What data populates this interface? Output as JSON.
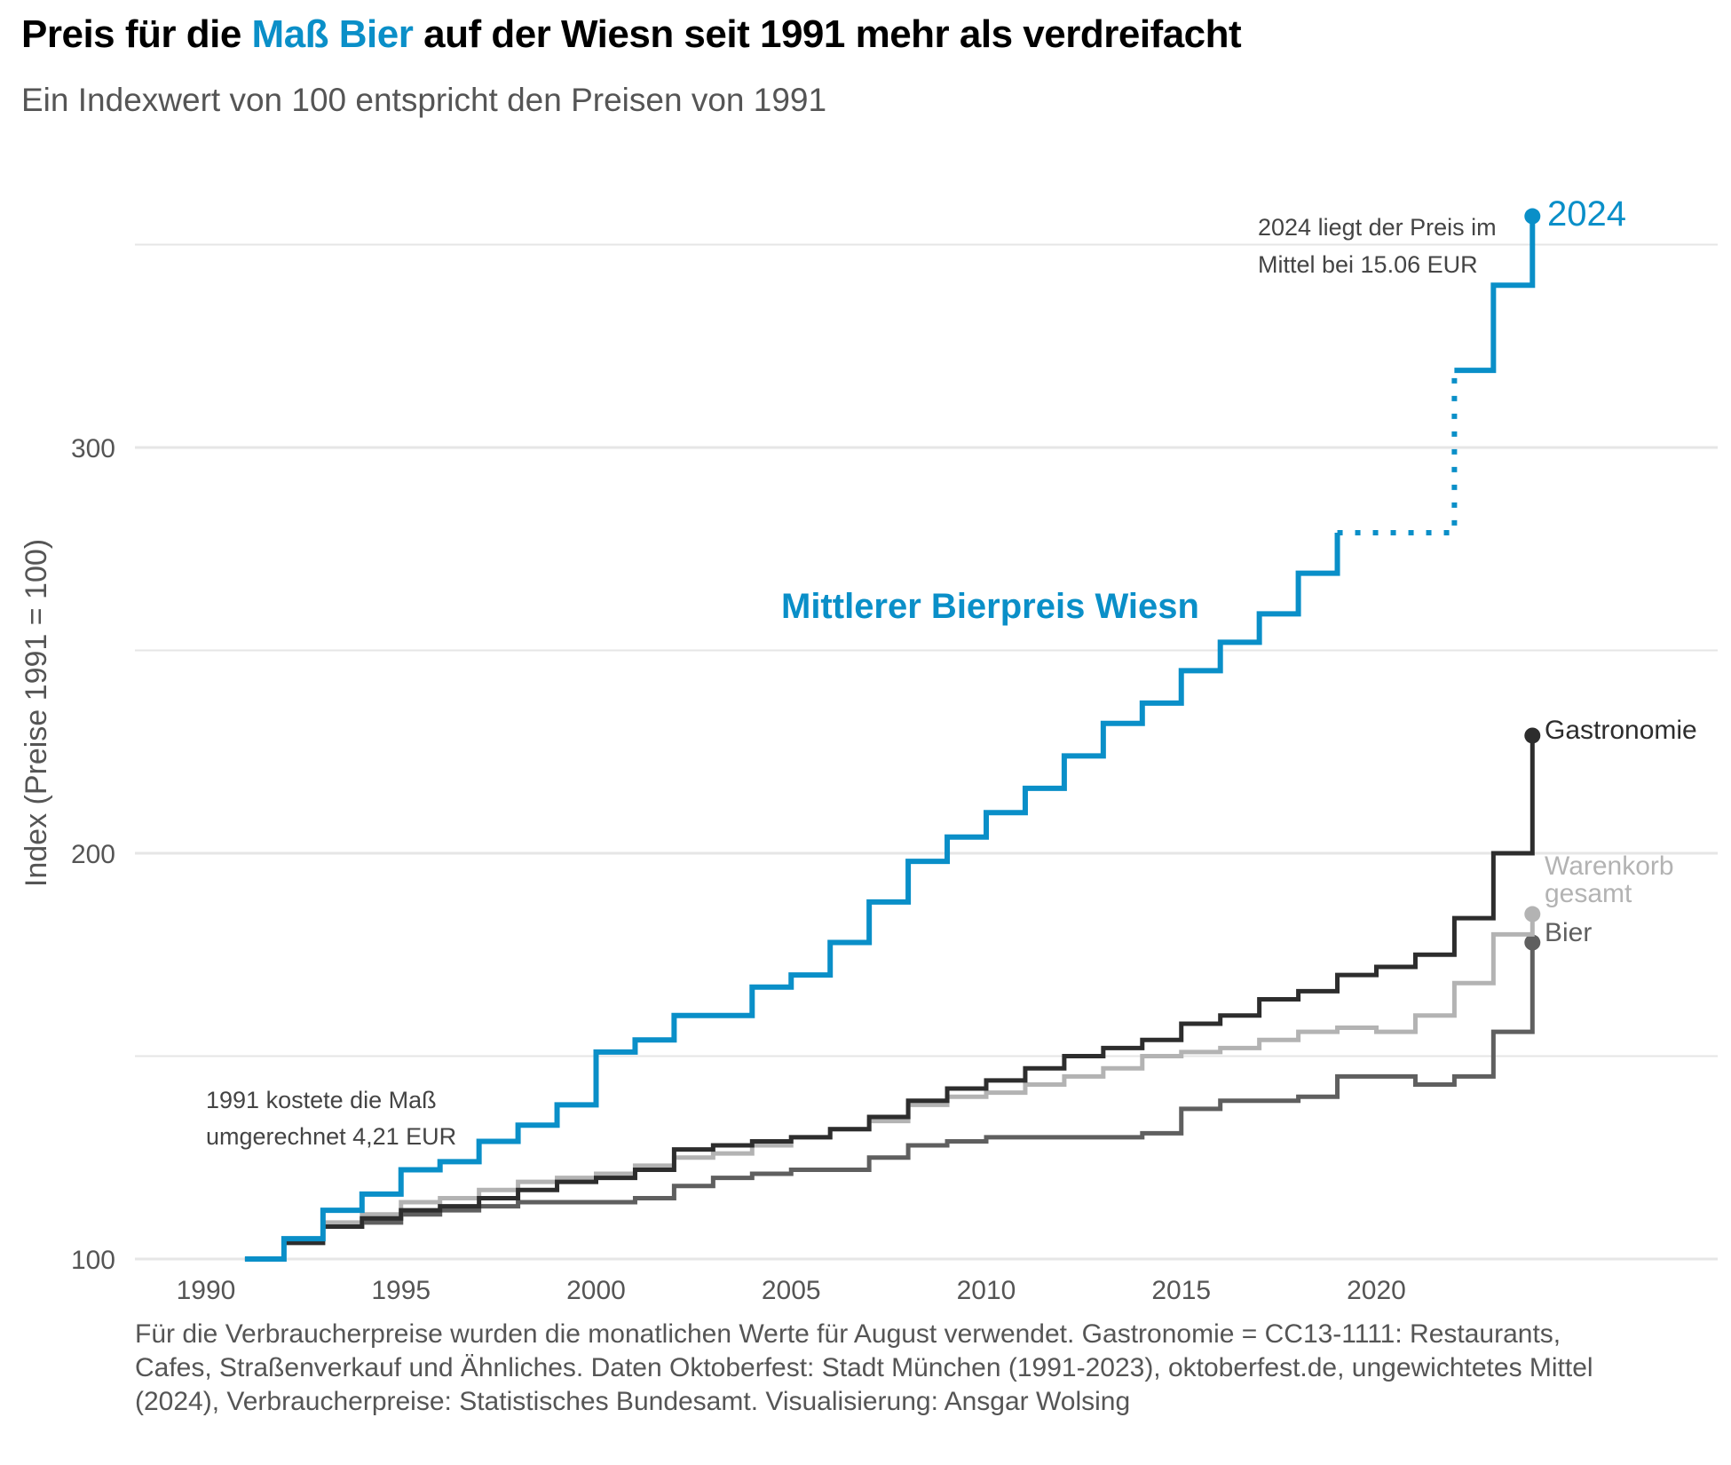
{
  "title": {
    "pre": "Preis für die ",
    "highlight": "Maß Bier",
    "post": " auf der Wiesn seit 1991 mehr als verdreifacht"
  },
  "subtitle": "Ein Indexwert von 100 entspricht den Preisen von 1991",
  "caption": {
    "line1": "Für die Verbraucherpreise wurden die monatlichen Werte für August verwendet. Gastronomie = CC13-1111: Restaurants,",
    "line2": "Cafes, Straßenverkauf und Ähnliches. Daten Oktoberfest: Stadt München (1991-2023), oktoberfest.de, ungewichtetes Mittel",
    "line3": "(2024), Verbraucherpreise: Statistisches Bundesamt. Visualisierung: Ansgar Wolsing"
  },
  "annotations": {
    "start_line1": "1991 kostete die Maß",
    "start_line2": "umgerechnet 4,21 EUR",
    "end_line1": "2024 liegt der Preis im",
    "end_line2": "Mittel bei 15.06 EUR",
    "end_year": "2024",
    "series_title": "Mittlerer Bierpreis Wiesn"
  },
  "colors": {
    "accent": "#0a8fc8",
    "gastronomie": "#2d2d2d",
    "warenkorb": "#b3b3b3",
    "bier": "#5f5f5f",
    "grid": "#e6e6e6"
  },
  "chart_data": {
    "type": "line",
    "step": "post",
    "ylabel": "Index (Preise 1991 = 100)",
    "xlim": [
      1988,
      2027
    ],
    "ylim": [
      100,
      365
    ],
    "x_ticks": [
      1990,
      1995,
      2000,
      2005,
      2010,
      2015,
      2020
    ],
    "y_ticks": [
      100,
      200,
      300
    ],
    "y_grid": [
      150,
      250,
      350
    ],
    "x": [
      1991,
      1992,
      1993,
      1994,
      1995,
      1996,
      1997,
      1998,
      1999,
      2000,
      2001,
      2002,
      2003,
      2004,
      2005,
      2006,
      2007,
      2008,
      2009,
      2010,
      2011,
      2012,
      2013,
      2014,
      2015,
      2016,
      2017,
      2018,
      2019,
      2020,
      2021,
      2022,
      2023,
      2024
    ],
    "series": [
      {
        "key": "wiesn",
        "name": "Mittlerer Bierpreis Wiesn",
        "values": [
          100,
          105,
          112,
          116,
          122,
          124,
          129,
          133,
          138,
          151,
          154,
          160,
          160,
          167,
          170,
          178,
          188,
          198,
          204,
          210,
          216,
          224,
          232,
          237,
          245,
          252,
          259,
          269,
          279,
          null,
          null,
          319,
          340,
          357
        ],
        "gap": {
          "from": 2019,
          "to": 2022,
          "from_value": 279,
          "to_value": 319
        }
      },
      {
        "key": "gastronomie",
        "name": "Gastronomie",
        "values": [
          100,
          104,
          108,
          110,
          112,
          113,
          115,
          117,
          119,
          120,
          122,
          127,
          128,
          129,
          130,
          132,
          135,
          139,
          142,
          144,
          147,
          150,
          152,
          154,
          158,
          160,
          164,
          166,
          170,
          172,
          175,
          184,
          200,
          229
        ]
      },
      {
        "key": "warenkorb",
        "name": "Warenkorb gesamt",
        "values": [
          100,
          104,
          109,
          111,
          114,
          115,
          117,
          119,
          120,
          121,
          123,
          125,
          126,
          128,
          130,
          132,
          134,
          138,
          140,
          141,
          143,
          145,
          147,
          150,
          151,
          152,
          154,
          156,
          157,
          156,
          160,
          168,
          180,
          185
        ]
      },
      {
        "key": "bier",
        "name": "Bier",
        "values": [
          100,
          104,
          108,
          109,
          111,
          112,
          113,
          114,
          114,
          114,
          115,
          118,
          120,
          121,
          122,
          122,
          125,
          128,
          129,
          130,
          130,
          130,
          130,
          131,
          137,
          139,
          139,
          140,
          145,
          145,
          143,
          145,
          156,
          178
        ]
      }
    ],
    "end_labels": {
      "gastronomie": "Gastronomie",
      "warenkorb_line1": "Warenkorb",
      "warenkorb_line2": "gesamt",
      "bier": "Bier"
    }
  }
}
